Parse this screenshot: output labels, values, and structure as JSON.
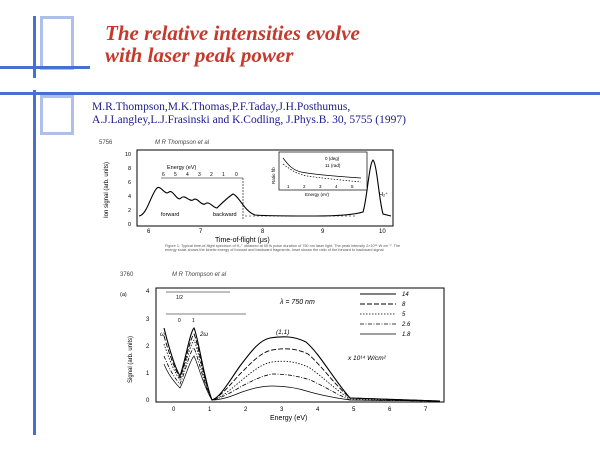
{
  "slide": {
    "title_line1": "The relative intensities evolve",
    "title_line2": "with laser peak power",
    "citation_line1": "M.R.Thompson,M.K.Thomas,P.F.Taday,J.H.Posthumus,",
    "citation_line2": "A.J.Langley,L.J.Frasinski and K.Codling, J.Phys.B. 30, 5755 (1997)"
  },
  "colors": {
    "title": "#c53a2c",
    "citation": "#1a1a8a",
    "decor_blue": "#4a6fd0",
    "decor_light": "#aebfe9"
  },
  "figure1": {
    "page_number": "5756",
    "running_head": "M R Thompson et al",
    "ylabel": "Ion signal (arb. units)",
    "xlabel": "Time-of-flight (μs)",
    "x_ticks": [
      "6",
      "7",
      "8",
      "9",
      "10"
    ],
    "y_ticks": [
      "10",
      "8",
      "6",
      "4",
      "2",
      "0"
    ],
    "energy_axis_label": "Energy (eV)",
    "energy_ticks": [
      "6",
      "5",
      "4",
      "3",
      "2",
      "1",
      "0"
    ],
    "forward_label": "forward",
    "backward_label": "backward",
    "peak_label": "H₂⁺",
    "inset_ylabel": "Ratio f/b",
    "inset_legend": [
      "0 (deg)",
      "11 (rad)"
    ],
    "inset_xlabel": "Energy (eV)",
    "inset_x_ticks": [
      "1",
      "2",
      "3",
      "4",
      "5"
    ],
    "caption": "Figure 1. Typical time-of-flight spectrum of H₂⁺ obtained at 55 fs pulse duration of 750 nm laser light. The peak intensity 2×10¹⁴ W cm⁻². The energy scale shows the kinetic energy of forward and backward fragments. Inset shows the ratio of the forward to backward signal."
  },
  "figure2": {
    "page_number": "3760",
    "running_head": "M R Thompson et al",
    "panel_label": "(a)",
    "ylabel": "Signal (arb. units)",
    "xlabel": "Energy (eV)",
    "x_ticks": [
      "0",
      "1",
      "2",
      "3",
      "4",
      "5",
      "6",
      "7"
    ],
    "y_ticks": [
      "4",
      "3",
      "2",
      "1",
      "0"
    ],
    "wavelength_label": "λ = 750 nm",
    "units_label": "x 10¹⁴ W/cm²",
    "state_label_1": "(1,1)",
    "state_label_2": "2ω",
    "state_label_3": "ω",
    "marker_labels": [
      "1/2",
      "0",
      "1"
    ],
    "legend": [
      "14",
      "8",
      "5",
      "2.6",
      "1.8"
    ]
  }
}
